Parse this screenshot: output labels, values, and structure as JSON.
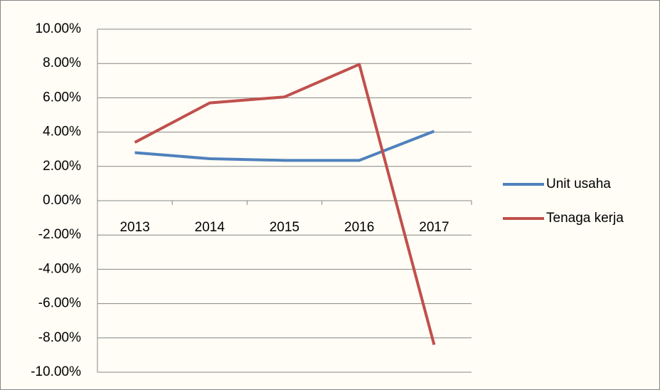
{
  "chart_data": {
    "type": "line",
    "categories": [
      "2013",
      "2014",
      "2015",
      "2016",
      "2017"
    ],
    "series": [
      {
        "name": "Unit usaha",
        "color": "#4f81bd",
        "values": [
          2.8,
          2.45,
          2.35,
          2.35,
          4.05
        ]
      },
      {
        "name": "Tenaga kerja",
        "color": "#c0504d",
        "values": [
          3.4,
          5.7,
          6.05,
          7.95,
          -8.4
        ]
      }
    ],
    "ylim": [
      -10,
      10
    ],
    "yticks": [
      {
        "value": 10,
        "label": "10.00%"
      },
      {
        "value": 8,
        "label": "8.00%"
      },
      {
        "value": 6,
        "label": "6.00%"
      },
      {
        "value": 4,
        "label": "4.00%"
      },
      {
        "value": 2,
        "label": "2.00%"
      },
      {
        "value": 0,
        "label": "0.00%"
      },
      {
        "value": -2,
        "label": "-2.00%"
      },
      {
        "value": -4,
        "label": "-4.00%"
      },
      {
        "value": -6,
        "label": "-6.00%"
      },
      {
        "value": -8,
        "label": "-8.00%"
      },
      {
        "value": -10,
        "label": "-10.00%"
      }
    ],
    "grid": true,
    "legend": "right"
  }
}
